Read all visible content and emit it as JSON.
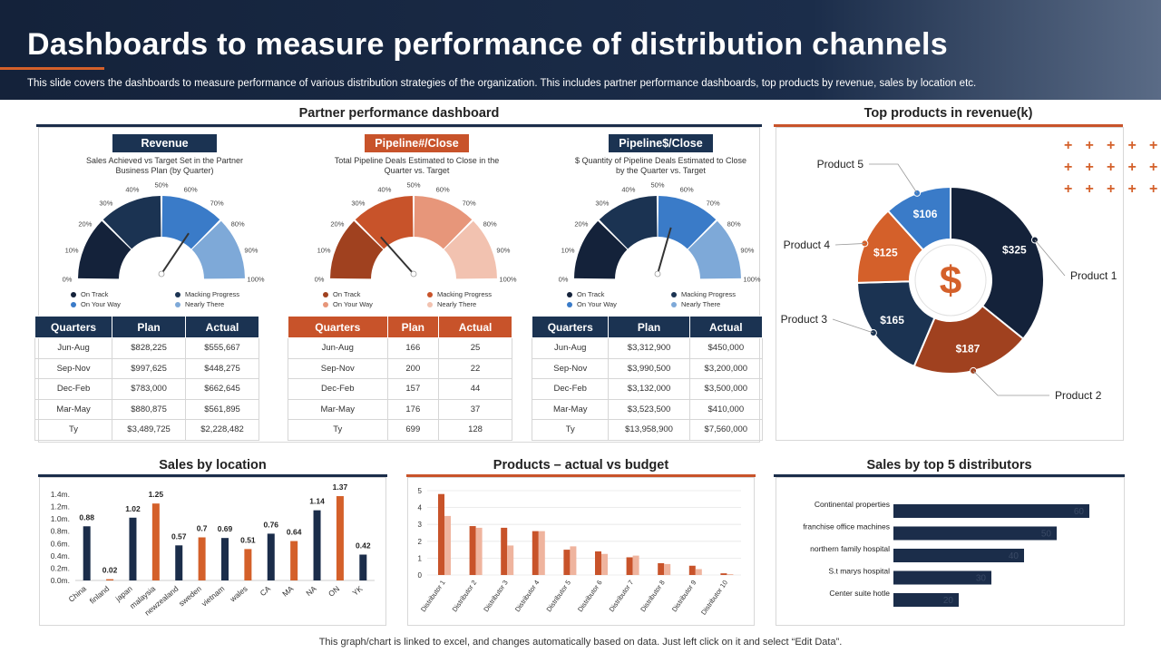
{
  "header": {
    "title": "Dashboards to measure performance of distribution channels",
    "subtitle": "This slide covers the dashboards to measure performance of various distribution strategies of the organization. This includes partner performance dashboards, top products by revenue, sales by location etc."
  },
  "partner": {
    "title": "Partner performance dashboard",
    "gauge_ticks": [
      "0\n%",
      "10%",
      "20%",
      "30%",
      "40%",
      "50%",
      "60%",
      "70%",
      "80%",
      "90%",
      "100%"
    ],
    "gauges": [
      {
        "label": "Revenue",
        "label_color": "#1b3352",
        "desc": "Sales Achieved vs Target Set in the Partner Business Plan (by Quarter)",
        "colors": [
          "#14223a",
          "#1b3352",
          "#3a7bc8",
          "#7ea9d8"
        ],
        "needle": 0.67,
        "legend": [
          "On Track",
          "Macking Progress",
          "On Your Way",
          "Nearly There"
        ],
        "legend_colors": [
          "#14223a",
          "#1b3352",
          "#3a7bc8",
          "#7ea9d8"
        ],
        "columns": [
          "Quarters",
          "Plan",
          "Actual"
        ],
        "rows": [
          [
            "Jun-Aug",
            "$828,225",
            "$555,667"
          ],
          [
            "Sep-Nov",
            "$997,625",
            "$448,275"
          ],
          [
            "Dec-Feb",
            "$783,000",
            "$662,645"
          ],
          [
            "Mar-May",
            "$880,875",
            "$561,895"
          ],
          [
            "Ty",
            "$3,489,725",
            "$2,228,482"
          ]
        ]
      },
      {
        "label": "Pipeline#/Close",
        "label_color": "#c8532a",
        "desc": "Total Pipeline Deals Estimated to Close in the Quarter vs. Target",
        "colors": [
          "#a0411f",
          "#c8532a",
          "#e7967a",
          "#f2c2b0"
        ],
        "needle": 0.29,
        "legend": [
          "On Track",
          "Macking Progress",
          "On Your Way",
          "Nearly There"
        ],
        "legend_colors": [
          "#a0411f",
          "#c8532a",
          "#e7967a",
          "#f2c2b0"
        ],
        "columns": [
          "Quarters",
          "Plan",
          "Actual"
        ],
        "rows": [
          [
            "Jun-Aug",
            "166",
            "25"
          ],
          [
            "Sep-Nov",
            "200",
            "22"
          ],
          [
            "Dec-Feb",
            "157",
            "44"
          ],
          [
            "Mar-May",
            "176",
            "37"
          ],
          [
            "Ty",
            "699",
            "128"
          ]
        ]
      },
      {
        "label": "Pipeline$/Close",
        "label_color": "#1b3352",
        "desc": "$ Quantity of Pipeline Deals Estimated to Close by the Quarter vs. Target",
        "colors": [
          "#14223a",
          "#1b3352",
          "#3a7bc8",
          "#7ea9d8"
        ],
        "needle": 0.58,
        "legend": [
          "On Track",
          "Macking Progress",
          "On Your Way",
          "Nearly There"
        ],
        "legend_colors": [
          "#14223a",
          "#1b3352",
          "#3a7bc8",
          "#7ea9d8"
        ],
        "columns": [
          "Quarters",
          "Plan",
          "Actual"
        ],
        "rows": [
          [
            "Jun-Aug",
            "$3,312,900",
            "$450,000"
          ],
          [
            "Sep-Nov",
            "$3,990,500",
            "$3,200,000"
          ],
          [
            "Dec-Feb",
            "$3,132,000",
            "$3,500,000"
          ],
          [
            "Mar-May",
            "$3,523,500",
            "$410,000"
          ],
          [
            "Ty",
            "$13,958,900",
            "$7,560,000"
          ]
        ]
      }
    ]
  },
  "top_products": {
    "title": "Top products in revenue(k)"
  },
  "sales_location": {
    "title": "Sales by location"
  },
  "products_budget": {
    "title": "Products – actual vs budget"
  },
  "distributors": {
    "title": "Sales by top 5 distributors"
  },
  "footer": "This graph/chart is linked to excel, and changes automatically based on data. Just left click on it and select “Edit Data”.",
  "chart_data": [
    {
      "type": "pie",
      "title": "Top products in revenue(k)",
      "categories": [
        "Product 1",
        "Product 2",
        "Product 3",
        "Product 4",
        "Product 5"
      ],
      "values": [
        325,
        187,
        165,
        125,
        106
      ],
      "labels": [
        "$325",
        "$187",
        "$165",
        "$125",
        "$106"
      ],
      "colors": [
        "#14223a",
        "#a0411f",
        "#1b3352",
        "#d4602a",
        "#3a7bc8"
      ],
      "center_symbol": "$"
    },
    {
      "type": "bar",
      "title": "Sales by location",
      "categories": [
        "China",
        "finland",
        "japan",
        "malaysia",
        "newzealand",
        "sweden",
        "vietnam",
        "wales",
        "CA",
        "MA",
        "NA",
        "ON",
        "YK"
      ],
      "values": [
        0.88,
        0.02,
        1.02,
        1.25,
        0.57,
        0.7,
        0.69,
        0.51,
        0.76,
        0.64,
        1.14,
        1.37,
        0.42
      ],
      "yticks": [
        "0.0m.",
        "0.2m.",
        "0.4m.",
        "0.6m.",
        "0.8m.",
        "1.0m.",
        "1.2m.",
        "1.4m."
      ],
      "ylim": [
        0,
        1.4
      ],
      "colors": [
        "#1b2d4a",
        "#d4602a"
      ]
    },
    {
      "type": "bar",
      "title": "Products – actual vs budget",
      "categories": [
        "Distributor 1",
        "Distributor 2",
        "Distributor 3",
        "Distributor 4",
        "Distributor 5",
        "Distributor 6",
        "Distributor 7",
        "Distributor 8",
        "Distributor 9",
        "Distributor 10"
      ],
      "series": [
        {
          "values": [
            4.8,
            2.9,
            2.8,
            2.6,
            1.5,
            1.4,
            1.05,
            0.7,
            0.55,
            0.1
          ],
          "color": "#c8532a"
        },
        {
          "values": [
            3.5,
            2.8,
            1.75,
            2.6,
            1.7,
            1.25,
            1.15,
            0.65,
            0.35,
            0.05
          ],
          "color": "#efb49e"
        }
      ],
      "yticks": [
        "0",
        "1",
        "2",
        "3",
        "4",
        "5"
      ],
      "ylim": [
        0,
        5
      ]
    },
    {
      "type": "bar",
      "title": "Sales by top 5 distributors",
      "orientation": "horizontal",
      "categories": [
        "Continental properties",
        "franchise office machines",
        "northern family hospital",
        "S.t marys hospital",
        "Center suite hotle"
      ],
      "values": [
        60,
        50,
        40,
        30,
        20
      ],
      "color": "#1b2d4a"
    }
  ]
}
